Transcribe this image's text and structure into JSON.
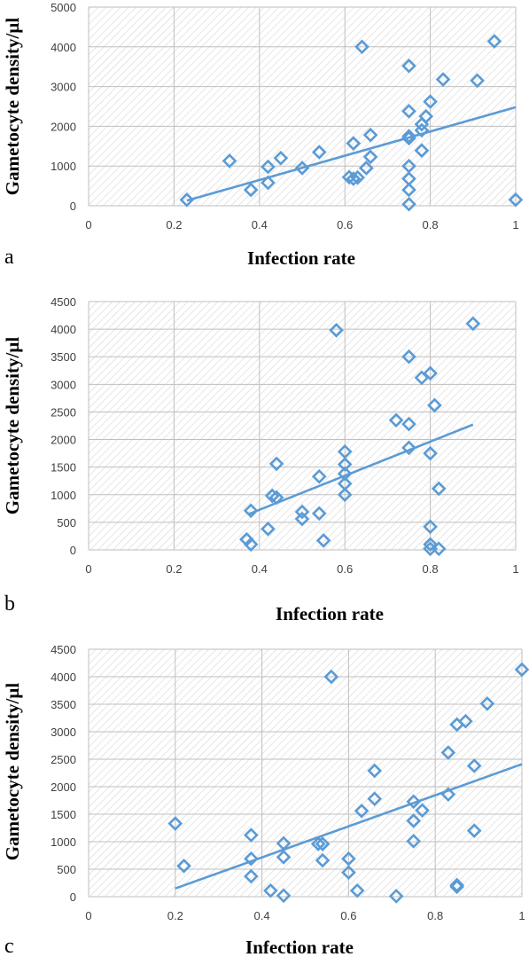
{
  "chart_data": [
    {
      "type": "scatter",
      "panel_label": "a",
      "xlabel": "Infection rate",
      "ylabel": "Gametocyte density/µl",
      "xlim": [
        0,
        1
      ],
      "ylim": [
        0,
        5000
      ],
      "x_ticks": [
        "0",
        "0.2",
        "0.4",
        "0.6",
        "0.8",
        "1"
      ],
      "y_ticks": [
        "0",
        "1000",
        "2000",
        "3000",
        "4000",
        "5000"
      ],
      "grid": true,
      "trendline": {
        "x": [
          0.23,
          1.0
        ],
        "y": [
          130,
          2480
        ]
      },
      "points": [
        {
          "x": 0.23,
          "y": 150
        },
        {
          "x": 0.33,
          "y": 1130
        },
        {
          "x": 0.38,
          "y": 400
        },
        {
          "x": 0.42,
          "y": 980
        },
        {
          "x": 0.42,
          "y": 580
        },
        {
          "x": 0.45,
          "y": 1200
        },
        {
          "x": 0.5,
          "y": 950
        },
        {
          "x": 0.54,
          "y": 1350
        },
        {
          "x": 0.61,
          "y": 720
        },
        {
          "x": 0.62,
          "y": 1570
        },
        {
          "x": 0.62,
          "y": 680
        },
        {
          "x": 0.63,
          "y": 710
        },
        {
          "x": 0.64,
          "y": 4000
        },
        {
          "x": 0.65,
          "y": 950
        },
        {
          "x": 0.66,
          "y": 1780
        },
        {
          "x": 0.66,
          "y": 1230
        },
        {
          "x": 0.75,
          "y": 3520
        },
        {
          "x": 0.75,
          "y": 2380
        },
        {
          "x": 0.75,
          "y": 1750
        },
        {
          "x": 0.75,
          "y": 1700
        },
        {
          "x": 0.75,
          "y": 1000
        },
        {
          "x": 0.75,
          "y": 680
        },
        {
          "x": 0.75,
          "y": 400
        },
        {
          "x": 0.75,
          "y": 40
        },
        {
          "x": 0.78,
          "y": 1390
        },
        {
          "x": 0.78,
          "y": 1900
        },
        {
          "x": 0.78,
          "y": 2050
        },
        {
          "x": 0.79,
          "y": 2250
        },
        {
          "x": 0.8,
          "y": 2620
        },
        {
          "x": 0.83,
          "y": 3180
        },
        {
          "x": 0.91,
          "y": 3150
        },
        {
          "x": 0.95,
          "y": 4140
        },
        {
          "x": 1.0,
          "y": 150
        }
      ]
    },
    {
      "type": "scatter",
      "panel_label": "b",
      "xlabel": "Infection rate",
      "ylabel": "Gametocyte density/µl",
      "xlim": [
        0,
        1
      ],
      "ylim": [
        0,
        4500
      ],
      "x_ticks": [
        "0",
        "0.2",
        "0.4",
        "0.6",
        "0.8",
        "1"
      ],
      "y_ticks": [
        "0",
        "500",
        "1000",
        "1500",
        "2000",
        "2500",
        "3000",
        "3500",
        "4000",
        "4500"
      ],
      "grid": true,
      "trendline": {
        "x": [
          0.375,
          0.9
        ],
        "y": [
          650,
          2270
        ]
      },
      "points": [
        {
          "x": 0.37,
          "y": 190
        },
        {
          "x": 0.38,
          "y": 710
        },
        {
          "x": 0.38,
          "y": 100
        },
        {
          "x": 0.42,
          "y": 380
        },
        {
          "x": 0.43,
          "y": 980
        },
        {
          "x": 0.44,
          "y": 950
        },
        {
          "x": 0.44,
          "y": 1560
        },
        {
          "x": 0.5,
          "y": 690
        },
        {
          "x": 0.5,
          "y": 560
        },
        {
          "x": 0.54,
          "y": 660
        },
        {
          "x": 0.54,
          "y": 1330
        },
        {
          "x": 0.55,
          "y": 170
        },
        {
          "x": 0.58,
          "y": 3980
        },
        {
          "x": 0.6,
          "y": 1780
        },
        {
          "x": 0.6,
          "y": 1550
        },
        {
          "x": 0.6,
          "y": 1380
        },
        {
          "x": 0.6,
          "y": 1200
        },
        {
          "x": 0.6,
          "y": 1000
        },
        {
          "x": 0.72,
          "y": 2350
        },
        {
          "x": 0.75,
          "y": 3500
        },
        {
          "x": 0.75,
          "y": 2280
        },
        {
          "x": 0.75,
          "y": 1850
        },
        {
          "x": 0.78,
          "y": 3120
        },
        {
          "x": 0.8,
          "y": 3200
        },
        {
          "x": 0.8,
          "y": 1750
        },
        {
          "x": 0.8,
          "y": 420
        },
        {
          "x": 0.8,
          "y": 100
        },
        {
          "x": 0.8,
          "y": 20
        },
        {
          "x": 0.81,
          "y": 2620
        },
        {
          "x": 0.82,
          "y": 1110
        },
        {
          "x": 0.82,
          "y": 20
        },
        {
          "x": 0.9,
          "y": 4100
        }
      ]
    },
    {
      "type": "scatter",
      "panel_label": "c",
      "xlabel": "Infection rate",
      "ylabel": "Gametocyte density/µl",
      "xlim": [
        0,
        1
      ],
      "ylim": [
        0,
        4500
      ],
      "x_ticks": [
        "0",
        "0.2",
        "0.4",
        "0.6",
        "0.8",
        "1"
      ],
      "y_ticks": [
        "0",
        "500",
        "1000",
        "1500",
        "2000",
        "2500",
        "3000",
        "3500",
        "4000",
        "4500"
      ],
      "grid": true,
      "trendline": {
        "x": [
          0.2,
          1.0
        ],
        "y": [
          150,
          2410
        ]
      },
      "points": [
        {
          "x": 0.2,
          "y": 1330
        },
        {
          "x": 0.22,
          "y": 560
        },
        {
          "x": 0.375,
          "y": 1120
        },
        {
          "x": 0.375,
          "y": 690
        },
        {
          "x": 0.375,
          "y": 370
        },
        {
          "x": 0.42,
          "y": 110
        },
        {
          "x": 0.45,
          "y": 970
        },
        {
          "x": 0.45,
          "y": 720
        },
        {
          "x": 0.45,
          "y": 20
        },
        {
          "x": 0.53,
          "y": 960
        },
        {
          "x": 0.54,
          "y": 960
        },
        {
          "x": 0.54,
          "y": 660
        },
        {
          "x": 0.56,
          "y": 4000
        },
        {
          "x": 0.6,
          "y": 690
        },
        {
          "x": 0.6,
          "y": 440
        },
        {
          "x": 0.62,
          "y": 110
        },
        {
          "x": 0.63,
          "y": 1560
        },
        {
          "x": 0.66,
          "y": 2290
        },
        {
          "x": 0.66,
          "y": 1780
        },
        {
          "x": 0.71,
          "y": 10
        },
        {
          "x": 0.75,
          "y": 1730
        },
        {
          "x": 0.75,
          "y": 1380
        },
        {
          "x": 0.75,
          "y": 1010
        },
        {
          "x": 0.77,
          "y": 1570
        },
        {
          "x": 0.83,
          "y": 2620
        },
        {
          "x": 0.83,
          "y": 1860
        },
        {
          "x": 0.85,
          "y": 3130
        },
        {
          "x": 0.85,
          "y": 210
        },
        {
          "x": 0.85,
          "y": 180
        },
        {
          "x": 0.87,
          "y": 3190
        },
        {
          "x": 0.89,
          "y": 2380
        },
        {
          "x": 0.89,
          "y": 1200
        },
        {
          "x": 0.92,
          "y": 3510
        },
        {
          "x": 1.0,
          "y": 4130
        }
      ]
    }
  ]
}
